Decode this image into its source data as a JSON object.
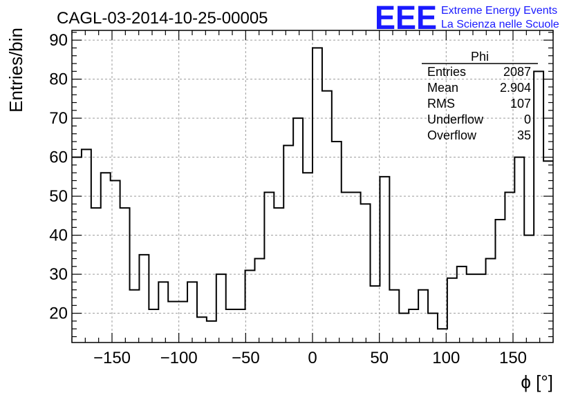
{
  "chart_data": {
    "type": "bar",
    "title": "CAGL-03-2014-10-25-00005",
    "xlabel": "ϕ [°]",
    "ylabel": "Entries/bin",
    "xlim": [
      -180,
      180
    ],
    "ylim": [
      12.5,
      92.5
    ],
    "grid": true,
    "x_ticks": [
      -150,
      -100,
      -50,
      0,
      50,
      100,
      150
    ],
    "x_tick_labels": [
      "−150",
      "−100",
      "−50",
      "0",
      "50",
      "100",
      "150"
    ],
    "y_ticks": [
      20,
      30,
      40,
      50,
      60,
      70,
      80,
      90
    ],
    "y_tick_labels": [
      "20",
      "30",
      "40",
      "50",
      "60",
      "70",
      "80",
      "90"
    ],
    "bin_width": 7.2,
    "bin_start": -180,
    "values": [
      60,
      62,
      47,
      56,
      54,
      47,
      26,
      35,
      21,
      28,
      23,
      23,
      28,
      19,
      18,
      30,
      21,
      21,
      31,
      34,
      51,
      47,
      63,
      70,
      56,
      88,
      77,
      64,
      51,
      51,
      48,
      27,
      55,
      26,
      20,
      21,
      26,
      20,
      16,
      29,
      32,
      30,
      30,
      34,
      44,
      51,
      60,
      40,
      82,
      59
    ]
  },
  "stats_box": {
    "title": "Phi",
    "rows": [
      {
        "label": "Entries",
        "value": "2087"
      },
      {
        "label": "Mean",
        "value": "2.904"
      },
      {
        "label": "RMS",
        "value": "107"
      },
      {
        "label": "Underflow",
        "value": "0"
      },
      {
        "label": "Overflow",
        "value": "35"
      }
    ]
  },
  "logo": {
    "text": "EEE",
    "line1": "Extreme Energy Events",
    "line2": "La Scienza nelle Scuole",
    "color": "#1a1aff"
  }
}
